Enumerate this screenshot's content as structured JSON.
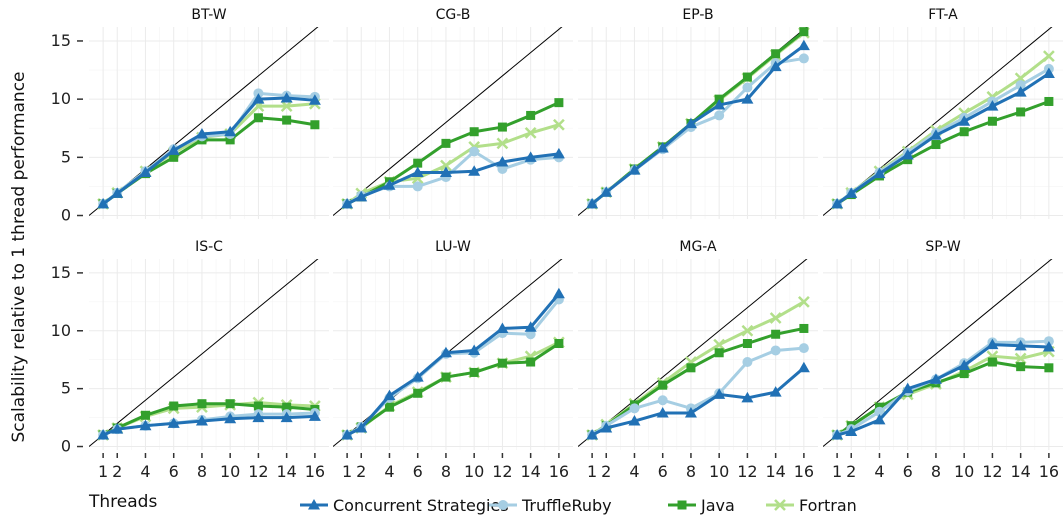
{
  "chart_data": {
    "type": "line",
    "xlabel": "Threads",
    "ylabel": "Scalability relative to 1 thread performance",
    "x_ticks": [
      1,
      2,
      4,
      6,
      8,
      10,
      12,
      14,
      16
    ],
    "y_ticks": [
      0,
      5,
      10,
      15
    ],
    "xlim": [
      0,
      17
    ],
    "ylim": [
      -0.3,
      16.2
    ],
    "grid": true,
    "legend_position": "bottom",
    "reference_line": "y = x",
    "series_styles": [
      {
        "name": "Concurrent Strategies",
        "color": "#2171b5",
        "marker": "triangle"
      },
      {
        "name": "TruffleRuby",
        "color": "#a6cee3",
        "marker": "circle"
      },
      {
        "name": "Java",
        "color": "#33a02c",
        "marker": "square"
      },
      {
        "name": "Fortran",
        "color": "#b2df8a",
        "marker": "cross"
      }
    ],
    "x": [
      1,
      2,
      4,
      6,
      8,
      10,
      12,
      14,
      16
    ],
    "panels": [
      {
        "title": "BT-W",
        "series": [
          {
            "name": "Concurrent Strategies",
            "values": [
              1,
              1.9,
              3.7,
              5.6,
              7.0,
              7.2,
              10.0,
              10.1,
              9.9
            ]
          },
          {
            "name": "TruffleRuby",
            "values": [
              1,
              1.95,
              3.8,
              5.7,
              6.8,
              7.0,
              10.5,
              10.3,
              10.2
            ]
          },
          {
            "name": "Java",
            "values": [
              1,
              1.9,
              3.6,
              5.0,
              6.5,
              6.5,
              8.4,
              8.2,
              7.8
            ]
          },
          {
            "name": "Fortran",
            "values": [
              1,
              1.95,
              3.8,
              5.4,
              6.7,
              7.0,
              9.4,
              9.4,
              9.6
            ]
          }
        ]
      },
      {
        "title": "CG-B",
        "series": [
          {
            "name": "Concurrent Strategies",
            "values": [
              1,
              1.6,
              2.6,
              3.7,
              3.7,
              3.8,
              4.6,
              5.0,
              5.3
            ]
          },
          {
            "name": "TruffleRuby",
            "values": [
              1,
              1.7,
              2.5,
              2.5,
              3.3,
              5.5,
              4.0,
              4.8,
              5.0
            ]
          },
          {
            "name": "Java",
            "values": [
              1,
              1.6,
              2.9,
              4.5,
              6.2,
              7.2,
              7.6,
              8.6,
              9.7
            ]
          },
          {
            "name": "Fortran",
            "values": [
              1,
              1.9,
              2.9,
              3.2,
              4.3,
              5.9,
              6.2,
              7.1,
              7.8
            ]
          }
        ]
      },
      {
        "title": "EP-B",
        "series": [
          {
            "name": "Concurrent Strategies",
            "values": [
              1,
              2.0,
              3.9,
              5.8,
              7.9,
              9.5,
              10.0,
              12.8,
              14.6
            ]
          },
          {
            "name": "TruffleRuby",
            "values": [
              1,
              2.0,
              3.9,
              5.7,
              7.6,
              8.6,
              11.0,
              13.1,
              13.5
            ]
          },
          {
            "name": "Java",
            "values": [
              1,
              2.0,
              4.0,
              5.9,
              7.9,
              10.0,
              11.9,
              13.9,
              15.8
            ]
          },
          {
            "name": "Fortran",
            "values": [
              1,
              2.0,
              4.0,
              5.9,
              7.9,
              9.9,
              11.8,
              13.8,
              15.7
            ]
          }
        ]
      },
      {
        "title": "FT-A",
        "series": [
          {
            "name": "Concurrent Strategies",
            "values": [
              1,
              1.9,
              3.6,
              5.2,
              6.9,
              8.1,
              9.4,
              10.6,
              12.2
            ]
          },
          {
            "name": "TruffleRuby",
            "values": [
              1,
              1.95,
              3.7,
              5.4,
              7.1,
              8.4,
              9.8,
              11.2,
              12.6
            ]
          },
          {
            "name": "Java",
            "values": [
              1,
              1.8,
              3.4,
              4.8,
              6.1,
              7.2,
              8.1,
              8.9,
              9.8
            ]
          },
          {
            "name": "Fortran",
            "values": [
              1,
              1.95,
              3.8,
              5.5,
              7.3,
              8.8,
              10.2,
              11.8,
              13.7
            ]
          }
        ]
      },
      {
        "title": "IS-C",
        "series": [
          {
            "name": "Concurrent Strategies",
            "values": [
              1,
              1.5,
              1.8,
              2.0,
              2.2,
              2.4,
              2.5,
              2.5,
              2.6
            ]
          },
          {
            "name": "TruffleRuby",
            "values": [
              1,
              1.5,
              1.8,
              2.0,
              2.3,
              2.6,
              2.8,
              2.8,
              2.9
            ]
          },
          {
            "name": "Java",
            "values": [
              1,
              1.6,
              2.7,
              3.5,
              3.7,
              3.7,
              3.5,
              3.4,
              3.2
            ]
          },
          {
            "name": "Fortran",
            "values": [
              1,
              1.6,
              2.6,
              3.3,
              3.4,
              3.6,
              3.8,
              3.6,
              3.5
            ]
          }
        ]
      },
      {
        "title": "LU-W",
        "series": [
          {
            "name": "Concurrent Strategies",
            "values": [
              1,
              1.6,
              4.4,
              6.0,
              8.1,
              8.3,
              10.2,
              10.3,
              13.2
            ]
          },
          {
            "name": "TruffleRuby",
            "values": [
              1,
              1.7,
              4.2,
              5.9,
              8.0,
              8.1,
              9.8,
              9.7,
              12.7
            ]
          },
          {
            "name": "Java",
            "values": [
              1,
              1.7,
              3.4,
              4.6,
              6.0,
              6.4,
              7.2,
              7.3,
              8.9
            ]
          },
          {
            "name": "Fortran",
            "values": [
              1,
              1.6,
              3.5,
              4.7,
              6.0,
              6.4,
              7.2,
              7.8,
              9.0
            ]
          }
        ]
      },
      {
        "title": "MG-A",
        "series": [
          {
            "name": "Concurrent Strategies",
            "values": [
              1,
              1.6,
              2.2,
              2.9,
              2.9,
              4.5,
              4.2,
              4.7,
              6.8
            ]
          },
          {
            "name": "TruffleRuby",
            "values": [
              1,
              1.8,
              3.3,
              4.0,
              3.3,
              4.6,
              7.3,
              8.3,
              8.5
            ]
          },
          {
            "name": "Java",
            "values": [
              1,
              1.8,
              3.6,
              5.3,
              6.8,
              8.1,
              8.9,
              9.7,
              10.2
            ]
          },
          {
            "name": "Fortran",
            "values": [
              1,
              1.9,
              3.7,
              5.5,
              7.3,
              8.8,
              10.0,
              11.1,
              12.5
            ]
          }
        ]
      },
      {
        "title": "SP-W",
        "series": [
          {
            "name": "Concurrent Strategies",
            "values": [
              1,
              1.3,
              2.3,
              5.0,
              5.8,
              7.0,
              8.8,
              8.7,
              8.6
            ]
          },
          {
            "name": "TruffleRuby",
            "values": [
              1,
              1.5,
              3.0,
              4.8,
              5.8,
              7.2,
              9.0,
              9.0,
              9.1
            ]
          },
          {
            "name": "Java",
            "values": [
              1,
              1.8,
              3.4,
              4.7,
              5.5,
              6.3,
              7.3,
              6.9,
              6.8
            ]
          },
          {
            "name": "Fortran",
            "values": [
              1,
              1.8,
              3.4,
              4.5,
              5.4,
              6.5,
              7.8,
              7.6,
              8.2
            ]
          }
        ]
      }
    ]
  }
}
